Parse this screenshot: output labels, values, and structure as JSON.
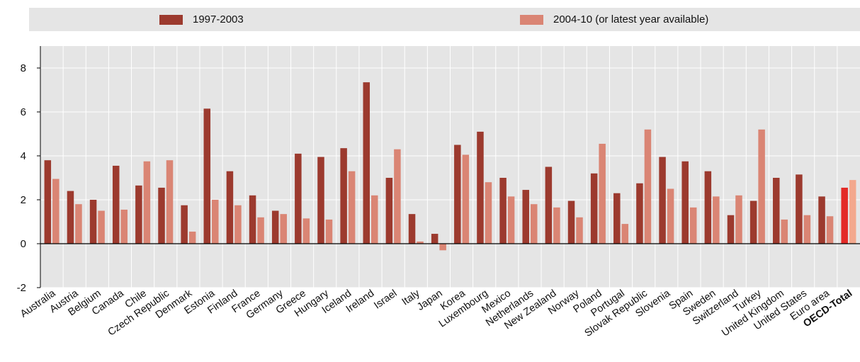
{
  "chart_data": {
    "type": "bar",
    "categories": [
      "Australia",
      "Austria",
      "Belgium",
      "Canada",
      "Chile",
      "Czech Republic",
      "Denmark",
      "Estonia",
      "Finland",
      "France",
      "Germany",
      "Greece",
      "Hungary",
      "Iceland",
      "Ireland",
      "Israel",
      "Italy",
      "Japan",
      "Korea",
      "Luxembourg",
      "Mexico",
      "Netherlands",
      "New Zealand",
      "Norway",
      "Poland",
      "Portugal",
      "Slovak Republic",
      "Slovenia",
      "Spain",
      "Sweden",
      "Switzerland",
      "Turkey",
      "United Kingdom",
      "United States",
      "Euro area",
      "OECD-Total"
    ],
    "highlight_category": "OECD-Total",
    "series": [
      {
        "name": "1997-2003",
        "color": "#9c3a2e",
        "values": [
          3.8,
          2.4,
          2.0,
          3.55,
          2.65,
          2.55,
          1.75,
          6.15,
          3.3,
          2.2,
          1.5,
          4.1,
          3.95,
          4.35,
          7.35,
          3.0,
          1.35,
          0.45,
          4.5,
          5.1,
          3.0,
          2.45,
          3.5,
          1.95,
          3.2,
          2.3,
          2.75,
          3.95,
          3.75,
          3.3,
          1.3,
          1.95,
          3.0,
          3.15,
          2.15,
          2.55
        ]
      },
      {
        "name": "2004-10 (or latest year available)",
        "color": "#da8574",
        "values": [
          2.95,
          1.8,
          1.5,
          1.55,
          3.75,
          3.8,
          0.55,
          2.0,
          1.75,
          1.2,
          1.35,
          1.15,
          1.1,
          3.3,
          2.2,
          4.3,
          0.1,
          -0.3,
          4.05,
          2.8,
          2.15,
          1.8,
          1.65,
          1.2,
          4.55,
          0.9,
          5.2,
          2.5,
          1.65,
          2.15,
          2.2,
          5.2,
          1.1,
          1.3,
          1.25,
          2.9
        ]
      }
    ],
    "highlight_colors": [
      "#e32a27",
      "#f3a88d"
    ],
    "ylim": [
      -2,
      9
    ],
    "yticks": [
      -2,
      0,
      2,
      4,
      6,
      8
    ],
    "grid": true,
    "legend_position": "top"
  }
}
